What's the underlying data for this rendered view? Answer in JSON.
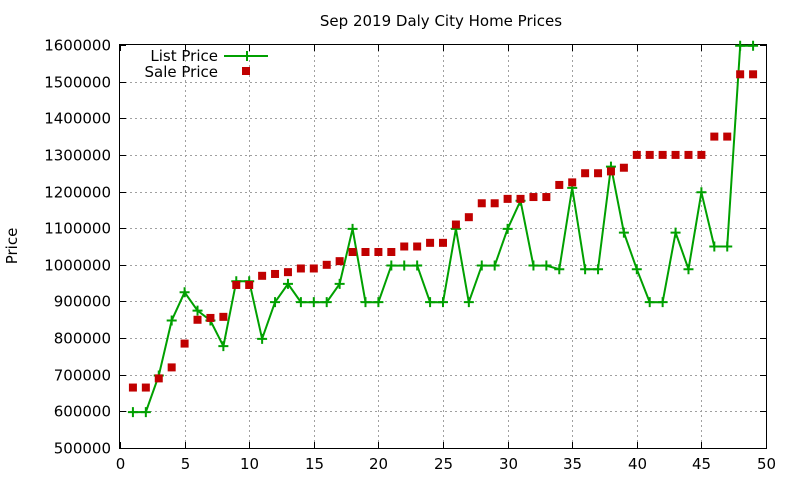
{
  "chart_data": {
    "type": "line",
    "title": "Sep 2019 Daly City Home Prices",
    "xlabel": "",
    "ylabel": "Price",
    "xlim": [
      0,
      50
    ],
    "ylim": [
      500000,
      1600000
    ],
    "x_ticks": [
      0,
      5,
      10,
      15,
      20,
      25,
      30,
      35,
      40,
      45,
      50
    ],
    "y_ticks": [
      500000,
      600000,
      700000,
      800000,
      900000,
      1000000,
      1100000,
      1200000,
      1300000,
      1400000,
      1500000,
      1600000
    ],
    "grid": true,
    "legend_position": "top-left",
    "colors": {
      "list": "#00a000",
      "sale": "#c00000"
    },
    "series": [
      {
        "name": "List Price",
        "style": "line+plus",
        "x": [
          1,
          2,
          3,
          4,
          5,
          6,
          7,
          8,
          9,
          10,
          11,
          12,
          13,
          14,
          15,
          16,
          17,
          18,
          19,
          20,
          21,
          22,
          23,
          24,
          25,
          26,
          27,
          28,
          29,
          30,
          31,
          32,
          33,
          34,
          35,
          36,
          37,
          38,
          39,
          40,
          41,
          42,
          43,
          44,
          45,
          46,
          47,
          48,
          49
        ],
        "values": [
          598000,
          598000,
          698000,
          848000,
          925000,
          875000,
          848000,
          778000,
          955000,
          955000,
          798000,
          898000,
          948000,
          898000,
          898000,
          898000,
          948000,
          1098000,
          898000,
          898000,
          998000,
          998000,
          998000,
          898000,
          898000,
          1098000,
          898000,
          998000,
          998000,
          1098000,
          1175000,
          998000,
          998000,
          988000,
          1210000,
          988000,
          988000,
          1268000,
          1088000,
          988000,
          898000,
          898000,
          1088000,
          988000,
          1198000,
          1050000,
          1050000,
          1598000,
          1598000
        ]
      },
      {
        "name": "Sale Price",
        "style": "square",
        "x": [
          1,
          2,
          3,
          4,
          5,
          6,
          7,
          8,
          9,
          10,
          11,
          12,
          13,
          14,
          15,
          16,
          17,
          18,
          19,
          20,
          21,
          22,
          23,
          24,
          25,
          26,
          27,
          28,
          29,
          30,
          31,
          32,
          33,
          34,
          35,
          36,
          37,
          38,
          39,
          40,
          41,
          42,
          43,
          44,
          45,
          46,
          47,
          48,
          49
        ],
        "values": [
          665000,
          665000,
          690000,
          720000,
          785000,
          850000,
          855000,
          858000,
          945000,
          945000,
          970000,
          975000,
          980000,
          990000,
          990000,
          1000000,
          1010000,
          1035000,
          1035000,
          1035000,
          1035000,
          1050000,
          1050000,
          1060000,
          1060000,
          1110000,
          1130000,
          1168000,
          1168000,
          1180000,
          1180000,
          1185000,
          1185000,
          1218000,
          1225000,
          1250000,
          1250000,
          1255000,
          1265000,
          1300000,
          1300000,
          1300000,
          1300000,
          1300000,
          1300000,
          1350000,
          1350000,
          1520000,
          1520000
        ]
      }
    ]
  }
}
